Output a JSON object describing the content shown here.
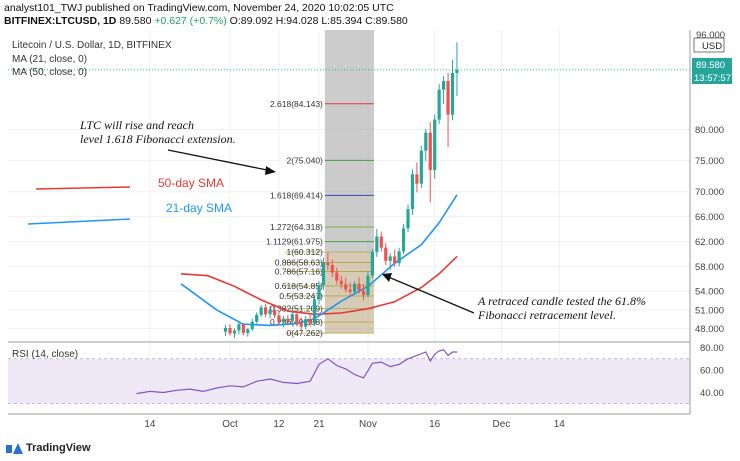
{
  "header": {
    "publish_line": "analyst101_TWJ published on TradingView.com, November 24, 2020 10:02:05 UTC",
    "symbol": "BITFINEX:LTCUSD, 1D",
    "last": "89.580",
    "change": "+0.627 (+0.7%)",
    "o": "O:89.092",
    "h": "H:94.028",
    "l": "L:85.394",
    "c": "C:89.580"
  },
  "legend": {
    "title": "Litecoin / U.S. Dollar, 1D, BITFINEX",
    "ma21": "MA (21, close, 0)",
    "ma50": "MA (50, close, 0)",
    "rsi": "RSI (14, close)"
  },
  "annotations": {
    "extension_note_1": "LTC will rise and reach",
    "extension_note_2": "level 1.618 Fibonacci extension.",
    "retrace_note_1": "A retraced candle tested the 61.8%",
    "retrace_note_2": "Fibonacci retracement level.",
    "sma50_label": "50-day SMA",
    "sma21_label": "21-day SMA"
  },
  "price_tags": {
    "last_price": "89.580",
    "countdown": "13:57:57",
    "currency": "USD",
    "top_partial": "96.000"
  },
  "footer": {
    "brand": "TradingView"
  },
  "colors": {
    "up": "#26a69a",
    "down": "#ef5350",
    "ma21": "#2196f3",
    "ma50": "#e53935",
    "rsi": "#7e57c2",
    "fib_box": "#b7a07a",
    "fib_box_top": "#8d8d8d"
  },
  "chart_data": {
    "type": "candlestick",
    "title": "Litecoin / U.S. Dollar, 1D, BITFINEX",
    "y_ticks": [
      48,
      51,
      54,
      58,
      62,
      66,
      70,
      75,
      80
    ],
    "y_tick_labels": [
      "48.000",
      "51.000",
      "54.000",
      "58.000",
      "62.000",
      "66.000",
      "70.000",
      "75.000",
      "80.000"
    ],
    "x_labels": [
      "14",
      "Oct",
      "12",
      "21",
      "Nov",
      "16",
      "Dec",
      "14"
    ],
    "x_label_days": [
      -17,
      1,
      12,
      21,
      32,
      47,
      62,
      75
    ],
    "ylim": [
      46,
      96
    ],
    "candles": [
      {
        "d": 0,
        "o": 47.5,
        "h": 48.6,
        "l": 46.8,
        "c": 48.1
      },
      {
        "d": 1,
        "o": 48.1,
        "h": 48.7,
        "l": 46.9,
        "c": 47.2
      },
      {
        "d": 2,
        "o": 47.2,
        "h": 48.0,
        "l": 46.5,
        "c": 47.7
      },
      {
        "d": 3,
        "o": 47.7,
        "h": 49.1,
        "l": 47.1,
        "c": 48.7
      },
      {
        "d": 4,
        "o": 48.7,
        "h": 48.9,
        "l": 46.9,
        "c": 47.3
      },
      {
        "d": 5,
        "o": 47.3,
        "h": 48.1,
        "l": 46.7,
        "c": 47.9
      },
      {
        "d": 6,
        "o": 47.9,
        "h": 49.5,
        "l": 47.6,
        "c": 49.1
      },
      {
        "d": 7,
        "o": 49.1,
        "h": 50.6,
        "l": 48.8,
        "c": 50.2
      },
      {
        "d": 8,
        "o": 50.2,
        "h": 51.8,
        "l": 49.9,
        "c": 51.4
      },
      {
        "d": 9,
        "o": 51.4,
        "h": 52.0,
        "l": 49.8,
        "c": 50.3
      },
      {
        "d": 10,
        "o": 50.3,
        "h": 51.6,
        "l": 49.6,
        "c": 51.0
      },
      {
        "d": 11,
        "o": 51.0,
        "h": 51.9,
        "l": 49.7,
        "c": 50.1
      },
      {
        "d": 12,
        "o": 50.1,
        "h": 50.9,
        "l": 48.6,
        "c": 49.0
      },
      {
        "d": 13,
        "o": 49.0,
        "h": 50.0,
        "l": 48.2,
        "c": 49.6
      },
      {
        "d": 14,
        "o": 49.6,
        "h": 50.2,
        "l": 48.7,
        "c": 49.2
      },
      {
        "d": 15,
        "o": 49.2,
        "h": 50.8,
        "l": 48.9,
        "c": 50.3
      },
      {
        "d": 16,
        "o": 50.3,
        "h": 50.9,
        "l": 48.4,
        "c": 48.9
      },
      {
        "d": 17,
        "o": 48.9,
        "h": 49.8,
        "l": 47.6,
        "c": 48.3
      },
      {
        "d": 18,
        "o": 48.3,
        "h": 50.0,
        "l": 47.9,
        "c": 49.5
      },
      {
        "d": 19,
        "o": 49.5,
        "h": 50.5,
        "l": 48.3,
        "c": 48.8
      },
      {
        "d": 20,
        "o": 48.8,
        "h": 53.2,
        "l": 48.4,
        "c": 52.7
      },
      {
        "d": 21,
        "o": 52.7,
        "h": 55.6,
        "l": 51.9,
        "c": 55.0
      },
      {
        "d": 22,
        "o": 55.0,
        "h": 59.4,
        "l": 54.2,
        "c": 58.6
      },
      {
        "d": 23,
        "o": 58.6,
        "h": 60.2,
        "l": 57.4,
        "c": 58.2
      },
      {
        "d": 24,
        "o": 58.2,
        "h": 59.1,
        "l": 56.3,
        "c": 57.0
      },
      {
        "d": 25,
        "o": 57.0,
        "h": 57.8,
        "l": 55.1,
        "c": 55.7
      },
      {
        "d": 26,
        "o": 55.7,
        "h": 56.5,
        "l": 54.4,
        "c": 55.1
      },
      {
        "d": 27,
        "o": 55.1,
        "h": 56.2,
        "l": 53.8,
        "c": 54.3
      },
      {
        "d": 28,
        "o": 54.3,
        "h": 55.4,
        "l": 53.1,
        "c": 53.9
      },
      {
        "d": 29,
        "o": 53.9,
        "h": 55.6,
        "l": 53.4,
        "c": 55.2
      },
      {
        "d": 30,
        "o": 55.2,
        "h": 56.3,
        "l": 53.6,
        "c": 54.1
      },
      {
        "d": 31,
        "o": 54.1,
        "h": 55.2,
        "l": 52.5,
        "c": 53.4
      },
      {
        "d": 32,
        "o": 53.4,
        "h": 57.1,
        "l": 53.0,
        "c": 56.5
      },
      {
        "d": 33,
        "o": 56.5,
        "h": 60.8,
        "l": 56.1,
        "c": 60.3
      },
      {
        "d": 34,
        "o": 60.3,
        "h": 64.0,
        "l": 59.5,
        "c": 62.8
      },
      {
        "d": 35,
        "o": 62.8,
        "h": 63.6,
        "l": 60.4,
        "c": 61.0
      },
      {
        "d": 36,
        "o": 61.0,
        "h": 61.8,
        "l": 58.2,
        "c": 58.9
      },
      {
        "d": 37,
        "o": 58.9,
        "h": 60.1,
        "l": 57.4,
        "c": 59.6
      },
      {
        "d": 38,
        "o": 59.6,
        "h": 60.7,
        "l": 57.9,
        "c": 58.5
      },
      {
        "d": 39,
        "o": 58.5,
        "h": 61.0,
        "l": 58.0,
        "c": 60.4
      },
      {
        "d": 40,
        "o": 60.4,
        "h": 64.8,
        "l": 60.0,
        "c": 64.1
      },
      {
        "d": 41,
        "o": 64.1,
        "h": 67.9,
        "l": 63.5,
        "c": 67.2
      },
      {
        "d": 42,
        "o": 67.2,
        "h": 73.6,
        "l": 66.3,
        "c": 72.8
      },
      {
        "d": 43,
        "o": 72.8,
        "h": 74.7,
        "l": 69.9,
        "c": 71.3
      },
      {
        "d": 44,
        "o": 71.3,
        "h": 77.4,
        "l": 70.6,
        "c": 76.6
      },
      {
        "d": 45,
        "o": 76.6,
        "h": 80.1,
        "l": 74.9,
        "c": 79.5
      },
      {
        "d": 46,
        "o": 79.5,
        "h": 81.2,
        "l": 68.3,
        "c": 73.5
      },
      {
        "d": 47,
        "o": 73.5,
        "h": 82.4,
        "l": 72.1,
        "c": 81.6
      },
      {
        "d": 48,
        "o": 81.6,
        "h": 87.3,
        "l": 80.9,
        "c": 86.4
      },
      {
        "d": 49,
        "o": 86.4,
        "h": 88.6,
        "l": 84.1,
        "c": 87.8
      },
      {
        "d": 50,
        "o": 87.8,
        "h": 89.1,
        "l": 77.2,
        "c": 82.4
      },
      {
        "d": 51,
        "o": 82.4,
        "h": 91.2,
        "l": 81.5,
        "c": 89.1
      },
      {
        "d": 52,
        "o": 89.1,
        "h": 94.0,
        "l": 85.4,
        "c": 89.6
      }
    ],
    "ma21": [
      [
        -10,
        55.2
      ],
      [
        -2,
        51.0
      ],
      [
        4,
        48.7
      ],
      [
        10,
        48.5
      ],
      [
        16,
        48.8
      ],
      [
        20,
        49.6
      ],
      [
        26,
        52.4
      ],
      [
        32,
        54.8
      ],
      [
        38,
        58.5
      ],
      [
        44,
        61.5
      ],
      [
        48,
        65.0
      ],
      [
        52,
        69.5
      ]
    ],
    "ma50": [
      [
        -10,
        56.8
      ],
      [
        -4,
        56.5
      ],
      [
        2,
        54.8
      ],
      [
        8,
        52.6
      ],
      [
        14,
        50.8
      ],
      [
        20,
        50.3
      ],
      [
        26,
        50.5
      ],
      [
        32,
        51.2
      ],
      [
        38,
        52.3
      ],
      [
        44,
        54.6
      ],
      [
        48,
        56.8
      ],
      [
        52,
        59.6
      ]
    ],
    "fib_retracement": [
      {
        "label": "1(60.312)",
        "value": 60.312
      },
      {
        "label": "0.886(58.63)",
        "value": 58.63
      },
      {
        "label": "0.786(57.16)",
        "value": 57.16
      },
      {
        "label": "0.618(54.85)",
        "value": 54.85
      },
      {
        "label": "0.5(53.247)",
        "value": 53.247
      },
      {
        "label": "0.382(51.209)",
        "value": 51.209
      },
      {
        "label": "0.236(49.058)",
        "value": 49.058
      },
      {
        "label": "0(47.262)",
        "value": 47.262
      }
    ],
    "fib_extension": [
      {
        "label": "2.618(84.143)",
        "value": 84.143,
        "color": "#e53935"
      },
      {
        "label": "2(75.040)",
        "value": 75.04,
        "color": "#43a047"
      },
      {
        "label": "1.618(69.414)",
        "value": 69.414,
        "color": "#3949ab"
      },
      {
        "label": "1.272(64.318)",
        "value": 64.318,
        "color": "#7cb342"
      },
      {
        "label": "1.1129(61.975)",
        "value": 61.975,
        "color": "#43a047"
      }
    ],
    "rsi": {
      "ylim": [
        28,
        84
      ],
      "ticks": [
        40,
        60,
        80
      ],
      "tick_labels": [
        "40.00",
        "60.00",
        "80.00"
      ],
      "band": [
        30,
        70
      ],
      "values": [
        [
          -20,
          39
        ],
        [
          -17,
          41
        ],
        [
          -14,
          40
        ],
        [
          -11,
          42
        ],
        [
          -8,
          43
        ],
        [
          -5,
          41
        ],
        [
          -2,
          44
        ],
        [
          1,
          46
        ],
        [
          4,
          45
        ],
        [
          7,
          50
        ],
        [
          10,
          52
        ],
        [
          13,
          49
        ],
        [
          16,
          48
        ],
        [
          19,
          50
        ],
        [
          21,
          65
        ],
        [
          23,
          70
        ],
        [
          25,
          64
        ],
        [
          27,
          61
        ],
        [
          29,
          56
        ],
        [
          31,
          53
        ],
        [
          33,
          66
        ],
        [
          35,
          67
        ],
        [
          37,
          63
        ],
        [
          39,
          65
        ],
        [
          41,
          70
        ],
        [
          43,
          73
        ],
        [
          45,
          76
        ],
        [
          46,
          68
        ],
        [
          47,
          74
        ],
        [
          48,
          77
        ],
        [
          49,
          78
        ],
        [
          50,
          73
        ],
        [
          51,
          76
        ],
        [
          52,
          76
        ]
      ]
    }
  }
}
